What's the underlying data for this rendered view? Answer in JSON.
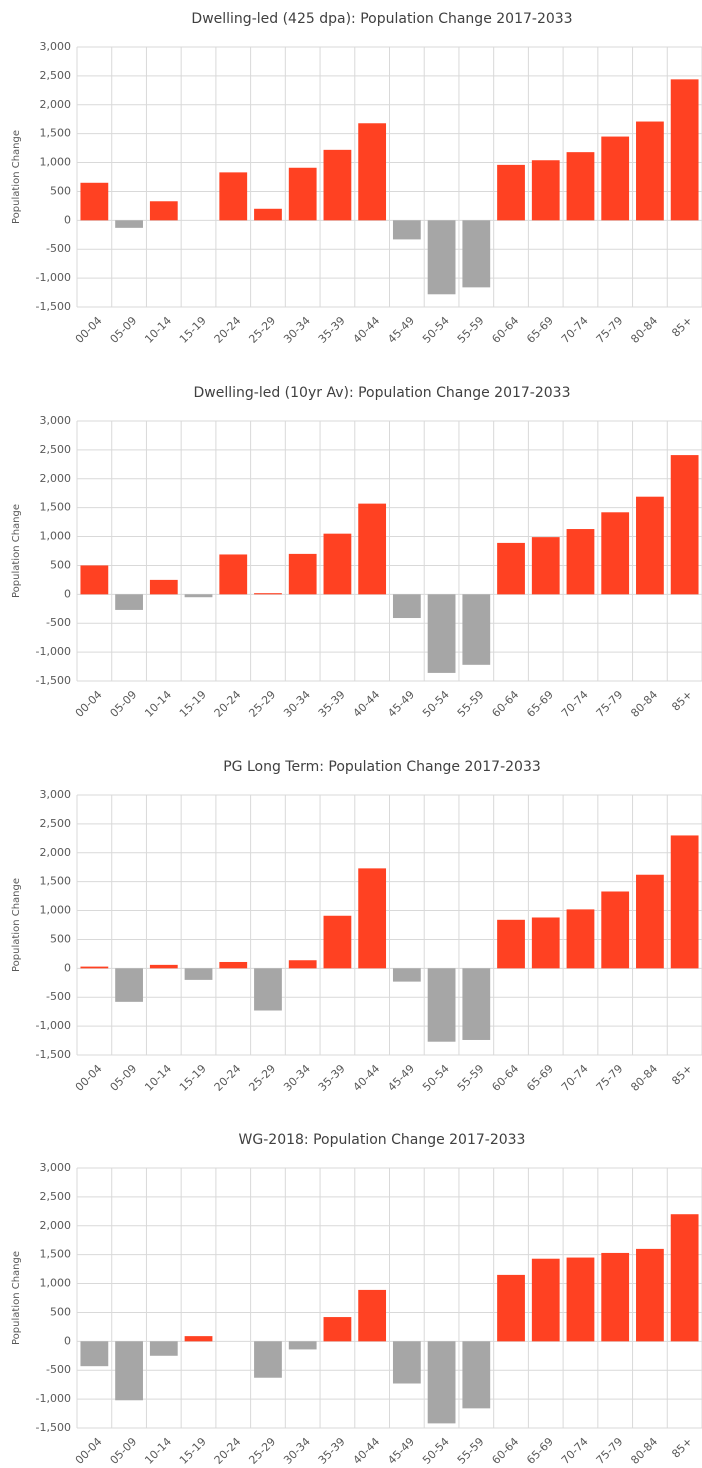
{
  "chart_data": [
    {
      "type": "bar",
      "title": "Dwelling-led (425 dpa): Population Change 2017-2033",
      "y_label": "Population Change",
      "categories": [
        "00-04",
        "05-09",
        "10-14",
        "15-19",
        "20-24",
        "25-29",
        "30-34",
        "35-39",
        "40-44",
        "45-49",
        "50-54",
        "55-59",
        "60-64",
        "65-69",
        "70-74",
        "75-79",
        "80-84",
        "85+"
      ],
      "values": [
        650,
        -130,
        330,
        0,
        830,
        200,
        910,
        1220,
        1680,
        -330,
        -1280,
        -1160,
        960,
        1040,
        1180,
        1450,
        1710,
        2440
      ],
      "color_positive": "#ff4122",
      "color_negative": "#a6a6a6",
      "ylim": [
        -1500,
        3000
      ],
      "yticks": [
        {
          "value": -1500,
          "label": "-1,500"
        },
        {
          "value": -1000,
          "label": "-1,000"
        },
        -500,
        0,
        500,
        {
          "value": 1000,
          "label": "1,000"
        },
        {
          "value": 1500,
          "label": "1,500"
        },
        {
          "value": 2000,
          "label": "2,000"
        },
        {
          "value": 2500,
          "label": "2,500"
        },
        {
          "value": 3000,
          "label": "3,000"
        }
      ],
      "grid": true
    },
    {
      "type": "bar",
      "title": "Dwelling-led (10yr Av): Population Change 2017-2033",
      "y_label": "Population Change",
      "categories": [
        "00-04",
        "05-09",
        "10-14",
        "15-19",
        "20-24",
        "25-29",
        "30-34",
        "35-39",
        "40-44",
        "45-49",
        "50-54",
        "55-59",
        "60-64",
        "65-69",
        "70-74",
        "75-79",
        "80-84",
        "85+"
      ],
      "values": [
        500,
        -270,
        250,
        -50,
        690,
        20,
        700,
        1050,
        1570,
        -410,
        -1360,
        -1220,
        890,
        990,
        1130,
        1420,
        1690,
        2410
      ],
      "color_positive": "#ff4122",
      "color_negative": "#a6a6a6",
      "ylim": [
        -1500,
        3000
      ],
      "yticks": [
        {
          "value": -1500,
          "label": "-1,500"
        },
        {
          "value": -1000,
          "label": "-1,000"
        },
        -500,
        0,
        500,
        {
          "value": 1000,
          "label": "1,000"
        },
        {
          "value": 1500,
          "label": "1,500"
        },
        {
          "value": 2000,
          "label": "2,000"
        },
        {
          "value": 2500,
          "label": "2,500"
        },
        {
          "value": 3000,
          "label": "3,000"
        }
      ],
      "grid": true
    },
    {
      "type": "bar",
      "title": "PG Long Term: Population Change 2017-2033",
      "y_label": "Population Change",
      "categories": [
        "00-04",
        "05-09",
        "10-14",
        "15-19",
        "20-24",
        "25-29",
        "30-34",
        "35-39",
        "40-44",
        "45-49",
        "50-54",
        "55-59",
        "60-64",
        "65-69",
        "70-74",
        "75-79",
        "80-84",
        "85+"
      ],
      "values": [
        30,
        -580,
        60,
        -200,
        110,
        -730,
        140,
        910,
        1730,
        -230,
        -1270,
        -1240,
        840,
        880,
        1020,
        1330,
        1620,
        2300
      ],
      "color_positive": "#ff4122",
      "color_negative": "#a6a6a6",
      "ylim": [
        -1500,
        3000
      ],
      "yticks": [
        {
          "value": -1500,
          "label": "-1,500"
        },
        {
          "value": -1000,
          "label": "-1,000"
        },
        -500,
        0,
        500,
        {
          "value": 1000,
          "label": "1,000"
        },
        {
          "value": 1500,
          "label": "1,500"
        },
        {
          "value": 2000,
          "label": "2,000"
        },
        {
          "value": 2500,
          "label": "2,500"
        },
        {
          "value": 3000,
          "label": "3,000"
        }
      ],
      "grid": true
    },
    {
      "type": "bar",
      "title": "WG-2018: Population Change 2017-2033",
      "y_label": "Population Change",
      "categories": [
        "00-04",
        "05-09",
        "10-14",
        "15-19",
        "20-24",
        "25-29",
        "30-34",
        "35-39",
        "40-44",
        "45-49",
        "50-54",
        "55-59",
        "60-64",
        "65-69",
        "70-74",
        "75-79",
        "80-84",
        "85+"
      ],
      "values": [
        -430,
        -1020,
        -250,
        90,
        0,
        -630,
        -140,
        420,
        890,
        -730,
        -1420,
        -1160,
        1150,
        1430,
        1450,
        1530,
        1600,
        2200
      ],
      "color_positive": "#ff4122",
      "color_negative": "#a6a6a6",
      "ylim": [
        -1500,
        3000
      ],
      "yticks": [
        {
          "value": -1500,
          "label": "-1,500"
        },
        {
          "value": -1000,
          "label": "-1,000"
        },
        -500,
        0,
        500,
        {
          "value": 1000,
          "label": "1,000"
        },
        {
          "value": 1500,
          "label": "1,500"
        },
        {
          "value": 2000,
          "label": "2,000"
        },
        {
          "value": 2500,
          "label": "2,500"
        },
        {
          "value": 3000,
          "label": "3,000"
        }
      ],
      "grid": true
    }
  ]
}
